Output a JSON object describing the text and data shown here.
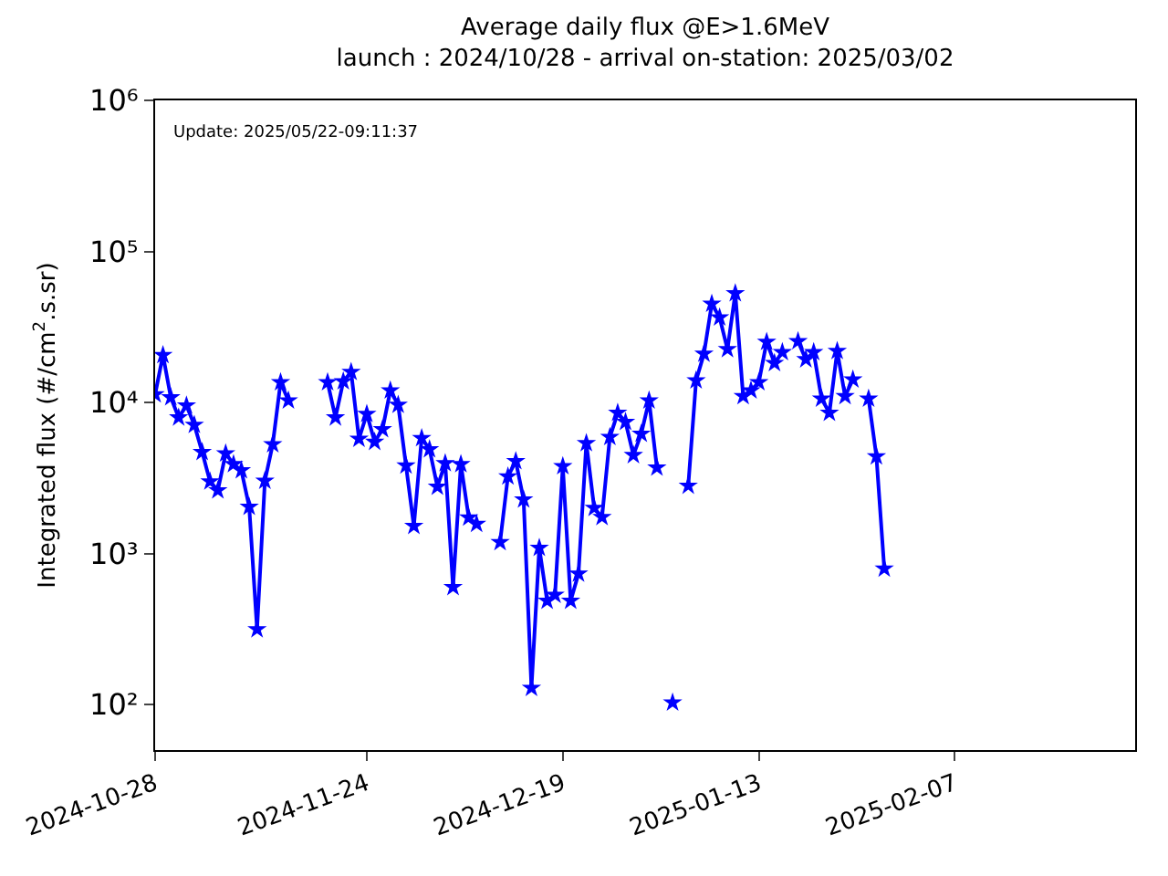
{
  "chart_data": {
    "type": "line",
    "title": "Average daily flux @E>1.6MeV",
    "subtitle": "launch : 2024/10/28 - arrival on-station: 2025/03/02",
    "ylabel": "Integrated flux (#/cm$^{2}$.s.sr)",
    "annotations": [
      "Update: 2025/05/22-09:11:37"
    ],
    "x": [
      "2024-10-28",
      "2024-10-29",
      "2024-10-30",
      "2024-10-31",
      "2024-11-01",
      "2024-11-02",
      "2024-11-03",
      "2024-11-04",
      "2024-11-05",
      "2024-11-06",
      "2024-11-07",
      "2024-11-08",
      "2024-11-09",
      "2024-11-10",
      "2024-11-11",
      "2024-11-12",
      "2024-11-13",
      "2024-11-14",
      "2024-11-15",
      "2024-11-16",
      "2024-11-17",
      "2024-11-18",
      "2024-11-19",
      "2024-11-20",
      "2024-11-21",
      "2024-11-22",
      "2024-11-23",
      "2024-11-24",
      "2024-11-25",
      "2024-11-26",
      "2024-11-27",
      "2024-11-28",
      "2024-11-29",
      "2024-11-30",
      "2024-12-01",
      "2024-12-02",
      "2024-12-03",
      "2024-12-04",
      "2024-12-05",
      "2024-12-06",
      "2024-12-07",
      "2024-12-08",
      "2024-12-09",
      "2024-12-10",
      "2024-12-11",
      "2024-12-12",
      "2024-12-13",
      "2024-12-14",
      "2024-12-15",
      "2024-12-16",
      "2024-12-17",
      "2024-12-18",
      "2024-12-19",
      "2024-12-20",
      "2024-12-21",
      "2024-12-22",
      "2024-12-23",
      "2024-12-24",
      "2024-12-25",
      "2024-12-26",
      "2024-12-27",
      "2024-12-28",
      "2024-12-29",
      "2024-12-30",
      "2024-12-31",
      "2025-01-01",
      "2025-01-02",
      "2025-01-03",
      "2025-01-04",
      "2025-01-05",
      "2025-01-06",
      "2025-01-07",
      "2025-01-08",
      "2025-01-09",
      "2025-01-10",
      "2025-01-11",
      "2025-01-12",
      "2025-01-13",
      "2025-01-14",
      "2025-01-15",
      "2025-01-16",
      "2025-01-17",
      "2025-01-18",
      "2025-01-19",
      "2025-01-20",
      "2025-01-21",
      "2025-01-22",
      "2025-01-23",
      "2025-01-24",
      "2025-01-25",
      "2025-01-26",
      "2025-01-27",
      "2025-01-28",
      "2025-01-29"
    ],
    "series": [
      {
        "color": "#0000ff",
        "values": [
          11300,
          20600,
          10800,
          7950,
          9550,
          7100,
          4700,
          3000,
          2620,
          4600,
          3900,
          3550,
          2040,
          315,
          3030,
          5280,
          13600,
          10300,
          null,
          null,
          null,
          null,
          13600,
          7950,
          13800,
          15900,
          5740,
          8400,
          5480,
          6650,
          12000,
          9640,
          3820,
          1520,
          5800,
          4900,
          2770,
          3960,
          600,
          3900,
          1730,
          1570,
          null,
          null,
          1190,
          3240,
          4080,
          2280,
          129,
          1090,
          486,
          533,
          3780,
          486,
          736,
          5380,
          2000,
          1740,
          5900,
          8530,
          7430,
          4480,
          6200,
          10300,
          3710,
          null,
          103,
          null,
          2810,
          14000,
          21000,
          45000,
          36500,
          22500,
          52800,
          11000,
          12000,
          13600,
          25200,
          18200,
          21500,
          null,
          25400,
          19300,
          21500,
          10600,
          8530,
          21900,
          11000,
          14200,
          null,
          10600,
          4390,
          794
        ]
      }
    ],
    "xlim": [
      "2024-10-28",
      "2025-03-02"
    ],
    "xticks": [
      "2024-10-28",
      "2024-11-24",
      "2024-12-19",
      "2025-01-13",
      "2025-02-07"
    ],
    "ylim": [
      50,
      1000000
    ],
    "yticks": [
      {
        "value": 100,
        "label": "10²"
      },
      {
        "value": 1000,
        "label": "10³"
      },
      {
        "value": 10000,
        "label": "10⁴"
      },
      {
        "value": 100000,
        "label": "10⁵"
      },
      {
        "value": 1000000,
        "label": "10⁶"
      }
    ],
    "log": "y",
    "marker": "star",
    "line_style": "solid"
  }
}
